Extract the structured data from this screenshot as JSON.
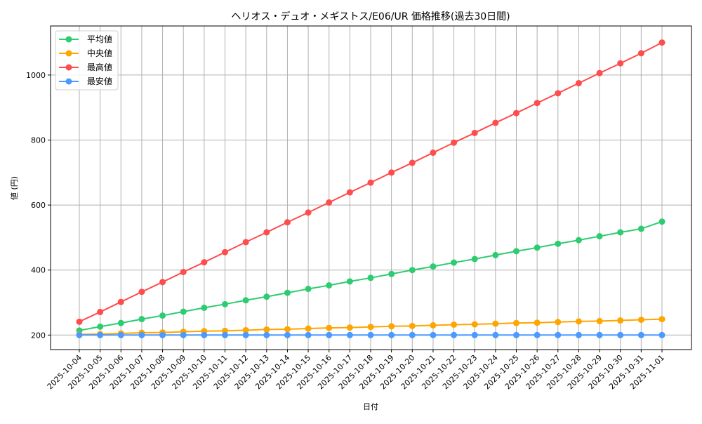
{
  "chart_data": {
    "type": "line",
    "title": "ヘリオス・デュオ・メギストス/E06/UR 価格推移(過去30日間)",
    "xlabel": "日付",
    "ylabel": "値 (円)",
    "ylim": [
      155,
      1142
    ],
    "yticks": [
      200,
      400,
      600,
      800,
      1000
    ],
    "grid": true,
    "legend_position": "upper left",
    "categories": [
      "2025-10-04",
      "2025-10-05",
      "2025-10-06",
      "2025-10-07",
      "2025-10-08",
      "2025-10-09",
      "2025-10-10",
      "2025-10-11",
      "2025-10-12",
      "2025-10-13",
      "2025-10-14",
      "2025-10-15",
      "2025-10-16",
      "2025-10-17",
      "2025-10-18",
      "2025-10-19",
      "2025-10-20",
      "2025-10-21",
      "2025-10-22",
      "2025-10-23",
      "2025-10-24",
      "2025-10-25",
      "2025-10-26",
      "2025-10-27",
      "2025-10-28",
      "2025-10-29",
      "2025-10-30",
      "2025-10-31",
      "2025-11-01"
    ],
    "series": [
      {
        "name": "平均値",
        "color": "#2ecc71",
        "values": [
          214,
          226,
          237,
          249,
          260,
          272,
          284,
          295,
          307,
          318,
          330,
          342,
          353,
          365,
          376,
          388,
          400,
          411,
          423,
          434,
          446,
          458,
          469,
          481,
          492,
          504,
          516,
          527,
          549
        ]
      },
      {
        "name": "中央値",
        "color": "#ffa500",
        "values": [
          202,
          203,
          205,
          207,
          208,
          210,
          212,
          213,
          215,
          217,
          218,
          220,
          222,
          223,
          225,
          227,
          228,
          230,
          232,
          233,
          235,
          237,
          238,
          240,
          242,
          243,
          245,
          247,
          249
        ]
      },
      {
        "name": "最高値",
        "color": "#ff4c4c",
        "values": [
          241,
          271,
          302,
          333,
          363,
          394,
          424,
          455,
          486,
          516,
          547,
          577,
          608,
          639,
          669,
          700,
          730,
          761,
          792,
          822,
          853,
          883,
          914,
          944,
          975,
          1006,
          1036,
          1067,
          1100
        ]
      },
      {
        "name": "最安値",
        "color": "#4c9aff",
        "values": [
          200,
          200,
          200,
          200,
          200,
          200,
          200,
          200,
          200,
          200,
          200,
          200,
          200,
          200,
          200,
          200,
          200,
          200,
          200,
          200,
          200,
          200,
          200,
          200,
          200,
          200,
          200,
          200,
          200
        ]
      }
    ]
  }
}
